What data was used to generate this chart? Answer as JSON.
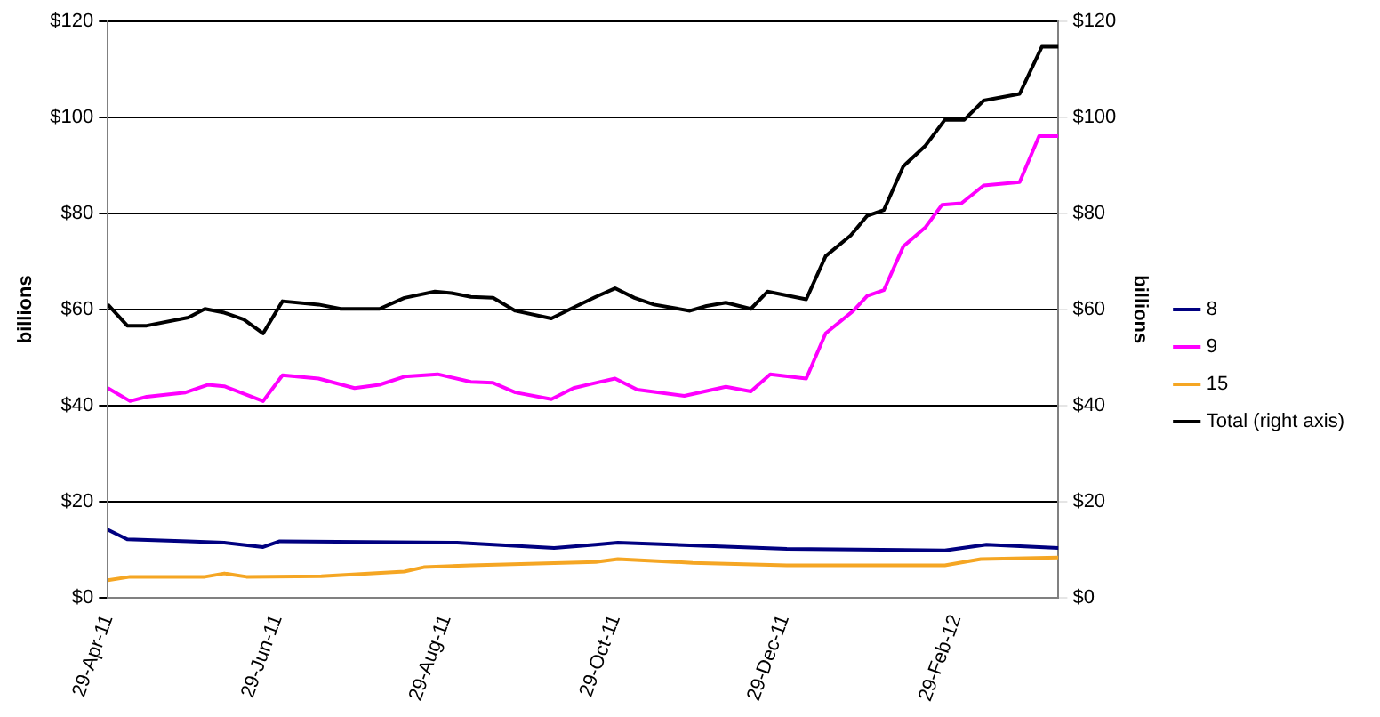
{
  "chart_data": {
    "type": "line",
    "ylabel": "billions",
    "y2label": "billions",
    "legend": "right",
    "grid": "y",
    "marker": "none",
    "line_style": "solid",
    "xlim": [
      "2011-04-29",
      "2012-04-06"
    ],
    "xticks": [
      {
        "value": "2011-04-29",
        "label": "29-Apr-11"
      },
      {
        "value": "2011-06-29",
        "label": "29-Jun-11"
      },
      {
        "value": "2011-08-29",
        "label": "29-Aug-11"
      },
      {
        "value": "2011-10-29",
        "label": "29-Oct-11"
      },
      {
        "value": "2011-12-29",
        "label": "29-Dec-11"
      },
      {
        "value": "2012-02-29",
        "label": "29-Feb-12"
      }
    ],
    "ylim": [
      0,
      120
    ],
    "yticks": [
      {
        "value": 0,
        "label": "$0"
      },
      {
        "value": 20,
        "label": "$20"
      },
      {
        "value": 40,
        "label": "$40"
      },
      {
        "value": 60,
        "label": "$60"
      },
      {
        "value": 80,
        "label": "$80"
      },
      {
        "value": 100,
        "label": "$100"
      },
      {
        "value": 120,
        "label": "$120"
      }
    ],
    "y2lim": [
      0,
      120
    ],
    "y2ticks": [
      {
        "value": 0,
        "label": "$0"
      },
      {
        "value": 20,
        "label": "$20"
      },
      {
        "value": 40,
        "label": "$40"
      },
      {
        "value": 60,
        "label": "$60"
      },
      {
        "value": 80,
        "label": "$80"
      },
      {
        "value": 100,
        "label": "$100"
      },
      {
        "value": 120,
        "label": "$120"
      }
    ],
    "series": [
      {
        "name": "8",
        "color": "#000080",
        "x": [
          "2011-04-29",
          "2011-05-06",
          "2011-05-28",
          "2011-06-10",
          "2011-06-24",
          "2011-06-30",
          "2011-09-02",
          "2011-10-07",
          "2011-10-22",
          "2011-10-30",
          "2011-12-30",
          "2012-02-25",
          "2012-03-11",
          "2012-04-06"
        ],
        "values": [
          14.1,
          12.1,
          11.7,
          11.4,
          10.5,
          11.7,
          11.4,
          10.3,
          11.0,
          11.4,
          10.1,
          9.8,
          11.0,
          10.3
        ]
      },
      {
        "name": "9",
        "color": "#ff00ff",
        "x": [
          "2011-04-29",
          "2011-05-07",
          "2011-05-13",
          "2011-05-27",
          "2011-06-04",
          "2011-06-10",
          "2011-06-24",
          "2011-07-01",
          "2011-07-14",
          "2011-07-27",
          "2011-08-05",
          "2011-08-14",
          "2011-08-26",
          "2011-09-07",
          "2011-09-15",
          "2011-09-23",
          "2011-10-06",
          "2011-10-14",
          "2011-10-22",
          "2011-10-29",
          "2011-11-06",
          "2011-11-23",
          "2011-12-08",
          "2011-12-17",
          "2011-12-24",
          "2012-01-06",
          "2012-01-13",
          "2012-01-23",
          "2012-01-28",
          "2012-02-03",
          "2012-02-10",
          "2012-02-18",
          "2012-02-24",
          "2012-03-02",
          "2012-03-10",
          "2012-03-23",
          "2012-03-30",
          "2012-04-06"
        ],
        "values": [
          43.6,
          40.9,
          41.8,
          42.7,
          44.3,
          44.0,
          40.9,
          46.3,
          45.6,
          43.6,
          44.3,
          46.0,
          46.5,
          44.9,
          44.7,
          42.7,
          41.3,
          43.6,
          44.7,
          45.6,
          43.3,
          42.0,
          43.9,
          42.9,
          46.5,
          45.6,
          55.0,
          59.7,
          62.8,
          64.0,
          73.1,
          77.1,
          81.8,
          82.1,
          85.8,
          86.5,
          96.1,
          96.1
        ]
      },
      {
        "name": "15",
        "color": "#f5a623",
        "x": [
          "2011-04-29",
          "2011-05-07",
          "2011-06-03",
          "2011-06-10",
          "2011-06-18",
          "2011-07-15",
          "2011-08-14",
          "2011-08-21",
          "2011-09-07",
          "2011-10-22",
          "2011-10-30",
          "2011-11-26",
          "2011-12-30",
          "2012-02-25",
          "2012-03-09",
          "2012-04-06"
        ],
        "values": [
          3.6,
          4.3,
          4.3,
          5.0,
          4.3,
          4.4,
          5.4,
          6.3,
          6.7,
          7.4,
          8.0,
          7.2,
          6.7,
          6.7,
          8.0,
          8.3
        ]
      },
      {
        "name": "Total (right axis)",
        "color": "#000000",
        "axis": "y2",
        "x": [
          "2011-04-29",
          "2011-05-06",
          "2011-05-13",
          "2011-05-28",
          "2011-06-03",
          "2011-06-10",
          "2011-06-17",
          "2011-06-24",
          "2011-07-01",
          "2011-07-14",
          "2011-07-22",
          "2011-08-05",
          "2011-08-14",
          "2011-08-25",
          "2011-08-31",
          "2011-09-07",
          "2011-09-15",
          "2011-09-23",
          "2011-10-06",
          "2011-10-13",
          "2011-10-22",
          "2011-10-29",
          "2011-11-05",
          "2011-11-12",
          "2011-11-25",
          "2011-12-01",
          "2011-12-08",
          "2011-12-17",
          "2011-12-23",
          "2012-01-06",
          "2012-01-13",
          "2012-01-22",
          "2012-01-28",
          "2012-02-03",
          "2012-02-10",
          "2012-02-18",
          "2012-02-25",
          "2012-03-03",
          "2012-03-10",
          "2012-03-23",
          "2012-03-31",
          "2012-04-06"
        ],
        "values": [
          61.0,
          56.6,
          56.6,
          58.3,
          60.1,
          59.3,
          57.9,
          55.0,
          61.7,
          61.0,
          60.1,
          60.1,
          62.4,
          63.7,
          63.4,
          62.6,
          62.4,
          59.7,
          58.1,
          60.1,
          62.6,
          64.4,
          62.4,
          61.0,
          59.7,
          60.7,
          61.4,
          60.1,
          63.7,
          62.1,
          71.1,
          75.4,
          79.5,
          80.7,
          89.8,
          94.1,
          99.5,
          99.5,
          103.5,
          104.9,
          114.7,
          114.7
        ]
      }
    ]
  }
}
